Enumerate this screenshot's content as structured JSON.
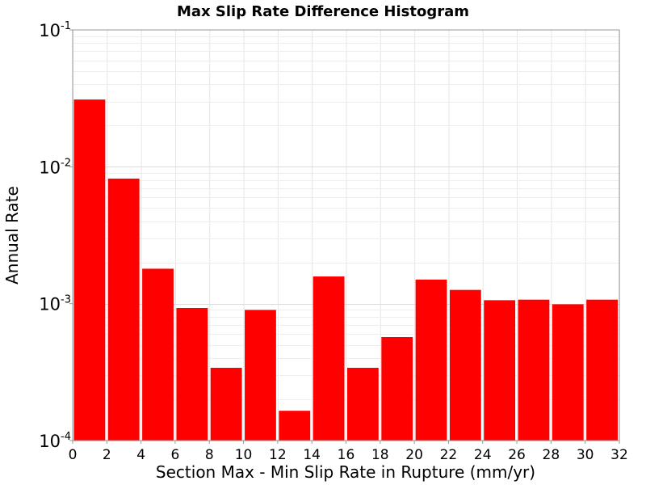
{
  "chart_data": {
    "type": "bar",
    "title": "Max Slip Rate Difference Histogram",
    "xlabel": "Section Max - Min Slip Rate in Rupture (mm/yr)",
    "ylabel": "Annual Rate",
    "x_ticks": [
      0,
      2,
      4,
      6,
      8,
      10,
      12,
      14,
      16,
      18,
      20,
      22,
      24,
      26,
      28,
      30,
      32
    ],
    "y_scale": "log",
    "y_ticks": [
      {
        "base": "10",
        "exp": "-4",
        "value": 0.0001
      },
      {
        "base": "10",
        "exp": "-3",
        "value": 0.001
      },
      {
        "base": "10",
        "exp": "-2",
        "value": 0.01
      },
      {
        "base": "10",
        "exp": "-1",
        "value": 0.1
      }
    ],
    "xlim": [
      0,
      32
    ],
    "ylim": [
      0.0001,
      0.1
    ],
    "bar_color": "#ff0000",
    "grid": true,
    "bins": [
      {
        "x0": 0,
        "x1": 2,
        "value": 0.031
      },
      {
        "x0": 2,
        "x1": 4,
        "value": 0.0082
      },
      {
        "x0": 4,
        "x1": 6,
        "value": 0.0018
      },
      {
        "x0": 6,
        "x1": 8,
        "value": 0.00093
      },
      {
        "x0": 8,
        "x1": 10,
        "value": 0.00034
      },
      {
        "x0": 10,
        "x1": 12,
        "value": 0.0009
      },
      {
        "x0": 12,
        "x1": 14,
        "value": 0.000165
      },
      {
        "x0": 14,
        "x1": 16,
        "value": 0.00158
      },
      {
        "x0": 16,
        "x1": 18,
        "value": 0.00034
      },
      {
        "x0": 18,
        "x1": 20,
        "value": 0.00057
      },
      {
        "x0": 20,
        "x1": 22,
        "value": 0.0015
      },
      {
        "x0": 22,
        "x1": 24,
        "value": 0.00126
      },
      {
        "x0": 24,
        "x1": 26,
        "value": 0.00106
      },
      {
        "x0": 26,
        "x1": 28,
        "value": 0.00107
      },
      {
        "x0": 28,
        "x1": 30,
        "value": 0.00099
      },
      {
        "x0": 30,
        "x1": 32,
        "value": 0.00107
      }
    ]
  }
}
